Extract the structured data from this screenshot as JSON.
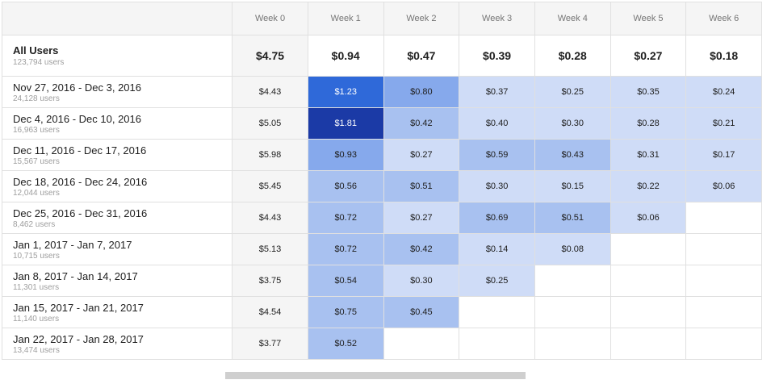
{
  "header": {
    "weeks": [
      "Week 0",
      "Week 1",
      "Week 2",
      "Week 3",
      "Week 4",
      "Week 5",
      "Week 6"
    ]
  },
  "all_users": {
    "title": "All Users",
    "subtitle": "123,794 users",
    "values": [
      "$4.75",
      "$0.94",
      "$0.47",
      "$0.39",
      "$0.28",
      "$0.27",
      "$0.18"
    ]
  },
  "colors": {
    "week0_bg": "#f5f5f5",
    "shade_1": "#cfdcf7",
    "shade_2": "#a8c1f0",
    "shade_3": "#86a9ec",
    "shade_4": "#4f86e6",
    "shade_5": "#2f69d9",
    "shade_6": "#1b3aa6",
    "scrollbar": "#cfcfcf"
  },
  "cohorts": [
    {
      "label": "Nov 27, 2016 - Dec 3, 2016",
      "users": "24,128 users",
      "cells": [
        {
          "v": "$4.43",
          "s": 0
        },
        {
          "v": "$1.23",
          "s": 5
        },
        {
          "v": "$0.80",
          "s": 3
        },
        {
          "v": "$0.37",
          "s": 1
        },
        {
          "v": "$0.25",
          "s": 1
        },
        {
          "v": "$0.35",
          "s": 1
        },
        {
          "v": "$0.24",
          "s": 1
        }
      ]
    },
    {
      "label": "Dec 4, 2016 - Dec 10, 2016",
      "users": "16,963 users",
      "cells": [
        {
          "v": "$5.05",
          "s": 0
        },
        {
          "v": "$1.81",
          "s": 6
        },
        {
          "v": "$0.42",
          "s": 2
        },
        {
          "v": "$0.40",
          "s": 1
        },
        {
          "v": "$0.30",
          "s": 1
        },
        {
          "v": "$0.28",
          "s": 1
        },
        {
          "v": "$0.21",
          "s": 1
        }
      ]
    },
    {
      "label": "Dec 11, 2016 - Dec 17, 2016",
      "users": "15,567 users",
      "cells": [
        {
          "v": "$5.98",
          "s": 0
        },
        {
          "v": "$0.93",
          "s": 3
        },
        {
          "v": "$0.27",
          "s": 1
        },
        {
          "v": "$0.59",
          "s": 2
        },
        {
          "v": "$0.43",
          "s": 2
        },
        {
          "v": "$0.31",
          "s": 1
        },
        {
          "v": "$0.17",
          "s": 1
        }
      ]
    },
    {
      "label": "Dec 18, 2016 - Dec 24, 2016",
      "users": "12,044 users",
      "cells": [
        {
          "v": "$5.45",
          "s": 0
        },
        {
          "v": "$0.56",
          "s": 2
        },
        {
          "v": "$0.51",
          "s": 2
        },
        {
          "v": "$0.30",
          "s": 1
        },
        {
          "v": "$0.15",
          "s": 1
        },
        {
          "v": "$0.22",
          "s": 1
        },
        {
          "v": "$0.06",
          "s": 1
        }
      ]
    },
    {
      "label": "Dec 25, 2016 - Dec 31, 2016",
      "users": "8,462 users",
      "cells": [
        {
          "v": "$4.43",
          "s": 0
        },
        {
          "v": "$0.72",
          "s": 2
        },
        {
          "v": "$0.27",
          "s": 1
        },
        {
          "v": "$0.69",
          "s": 2
        },
        {
          "v": "$0.51",
          "s": 2
        },
        {
          "v": "$0.06",
          "s": 1
        },
        {
          "v": "",
          "s": -1
        }
      ]
    },
    {
      "label": "Jan 1, 2017 - Jan 7, 2017",
      "users": "10,715 users",
      "cells": [
        {
          "v": "$5.13",
          "s": 0
        },
        {
          "v": "$0.72",
          "s": 2
        },
        {
          "v": "$0.42",
          "s": 2
        },
        {
          "v": "$0.14",
          "s": 1
        },
        {
          "v": "$0.08",
          "s": 1
        },
        {
          "v": "",
          "s": -1
        },
        {
          "v": "",
          "s": -1
        }
      ]
    },
    {
      "label": "Jan 8, 2017 - Jan 14, 2017",
      "users": "11,301 users",
      "cells": [
        {
          "v": "$3.75",
          "s": 0
        },
        {
          "v": "$0.54",
          "s": 2
        },
        {
          "v": "$0.30",
          "s": 1
        },
        {
          "v": "$0.25",
          "s": 1
        },
        {
          "v": "",
          "s": -1
        },
        {
          "v": "",
          "s": -1
        },
        {
          "v": "",
          "s": -1
        }
      ]
    },
    {
      "label": "Jan 15, 2017 - Jan 21, 2017",
      "users": "11,140 users",
      "cells": [
        {
          "v": "$4.54",
          "s": 0
        },
        {
          "v": "$0.75",
          "s": 2
        },
        {
          "v": "$0.45",
          "s": 2
        },
        {
          "v": "",
          "s": -1
        },
        {
          "v": "",
          "s": -1
        },
        {
          "v": "",
          "s": -1
        },
        {
          "v": "",
          "s": -1
        }
      ]
    },
    {
      "label": "Jan 22, 2017 - Jan 28, 2017",
      "users": "13,474 users",
      "cells": [
        {
          "v": "$3.77",
          "s": 0
        },
        {
          "v": "$0.52",
          "s": 2
        },
        {
          "v": "",
          "s": -1
        },
        {
          "v": "",
          "s": -1
        },
        {
          "v": "",
          "s": -1
        },
        {
          "v": "",
          "s": -1
        },
        {
          "v": "",
          "s": -1
        }
      ]
    }
  ]
}
